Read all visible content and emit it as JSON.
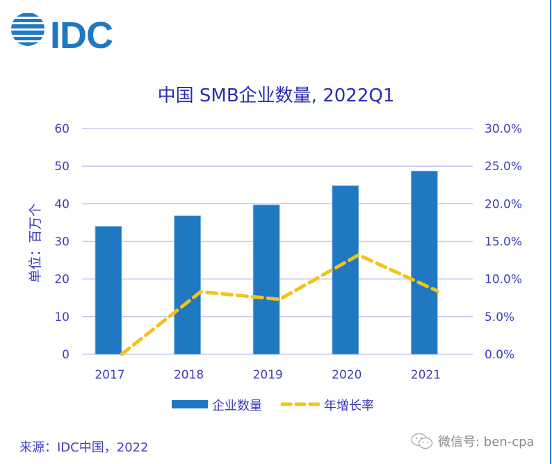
{
  "logo": {
    "text": "IDC",
    "color": "#1f78c1"
  },
  "source_note": "来源：IDC中国，2022",
  "watermark": {
    "icon": "wechat-icon",
    "text": "微信号: ben-cpa"
  },
  "colors": {
    "bar": "#1f78c1",
    "line": "#f2c318",
    "text": "#3535bb",
    "grid": "#c8c8f4",
    "frame": "#2f7fc4"
  },
  "chart_data": {
    "type": "bar",
    "title": "中国 SMB企业数量, 2022Q1",
    "xlabel": "",
    "ylabel": "单位：百万个",
    "categories": [
      "2017",
      "2018",
      "2019",
      "2020",
      "2021"
    ],
    "ylim": [
      0,
      60
    ],
    "y_ticks": [
      "0",
      "10",
      "20",
      "30",
      "40",
      "50",
      "60"
    ],
    "y2lim": [
      0,
      30
    ],
    "y2_ticks": [
      "0.0%",
      "5.0%",
      "10.0%",
      "15.0%",
      "20.0%",
      "25.0%",
      "30.0%"
    ],
    "grid": true,
    "legend_position": "bottom",
    "series": [
      {
        "name": "企业数量",
        "type": "bar",
        "axis": "left",
        "values": [
          34.0,
          36.8,
          39.7,
          44.8,
          48.7
        ]
      },
      {
        "name": "年增长率",
        "type": "line",
        "style": "dashed",
        "axis": "right",
        "values": [
          0.0,
          8.3,
          7.3,
          13.2,
          8.4
        ]
      }
    ]
  }
}
